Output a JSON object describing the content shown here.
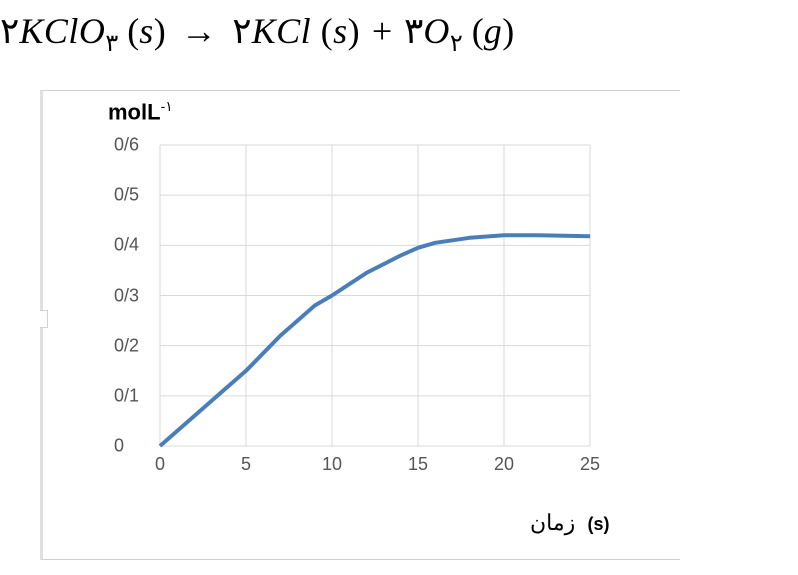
{
  "equation": {
    "lhs_coef": "۲",
    "lhs_species": "KClO",
    "lhs_sub": "۳",
    "lhs_phase": "s",
    "rhs1_coef": "۲",
    "rhs1_species": "KCl",
    "rhs1_phase": "s",
    "rhs2_coef": "۳",
    "rhs2_species": "O",
    "rhs2_sub": "۲",
    "rhs2_phase": "g",
    "arrow": "→",
    "plus": "+"
  },
  "chart": {
    "type": "line",
    "y_title": "molL",
    "y_title_sup": "-۱",
    "x_title_word": "زمان",
    "x_title_unit": "(s)",
    "xlim": [
      0,
      25
    ],
    "ylim": [
      0,
      0.6
    ],
    "xtick_step": 5,
    "ytick_step": 0.1,
    "xticks": [
      0,
      5,
      10,
      15,
      20,
      25
    ],
    "yticks_labels": [
      "0",
      "0/1",
      "0/2",
      "0/3",
      "0/4",
      "0/5",
      "0/6"
    ],
    "yticks_values": [
      0,
      0.1,
      0.2,
      0.3,
      0.4,
      0.5,
      0.6
    ],
    "series_color": "#4a7ebb",
    "grid_color": "#d9d9d9",
    "background_color": "#ffffff",
    "line_width": 4,
    "title_fontsize": 22,
    "tick_fontsize": 18,
    "data": [
      {
        "x": 0,
        "y": 0.0
      },
      {
        "x": 2,
        "y": 0.06
      },
      {
        "x": 4,
        "y": 0.12
      },
      {
        "x": 5,
        "y": 0.15
      },
      {
        "x": 7,
        "y": 0.22
      },
      {
        "x": 9,
        "y": 0.28
      },
      {
        "x": 10,
        "y": 0.3
      },
      {
        "x": 12,
        "y": 0.345
      },
      {
        "x": 14,
        "y": 0.38
      },
      {
        "x": 15,
        "y": 0.395
      },
      {
        "x": 16,
        "y": 0.405
      },
      {
        "x": 18,
        "y": 0.415
      },
      {
        "x": 20,
        "y": 0.42
      },
      {
        "x": 22,
        "y": 0.42
      },
      {
        "x": 25,
        "y": 0.418
      }
    ]
  }
}
